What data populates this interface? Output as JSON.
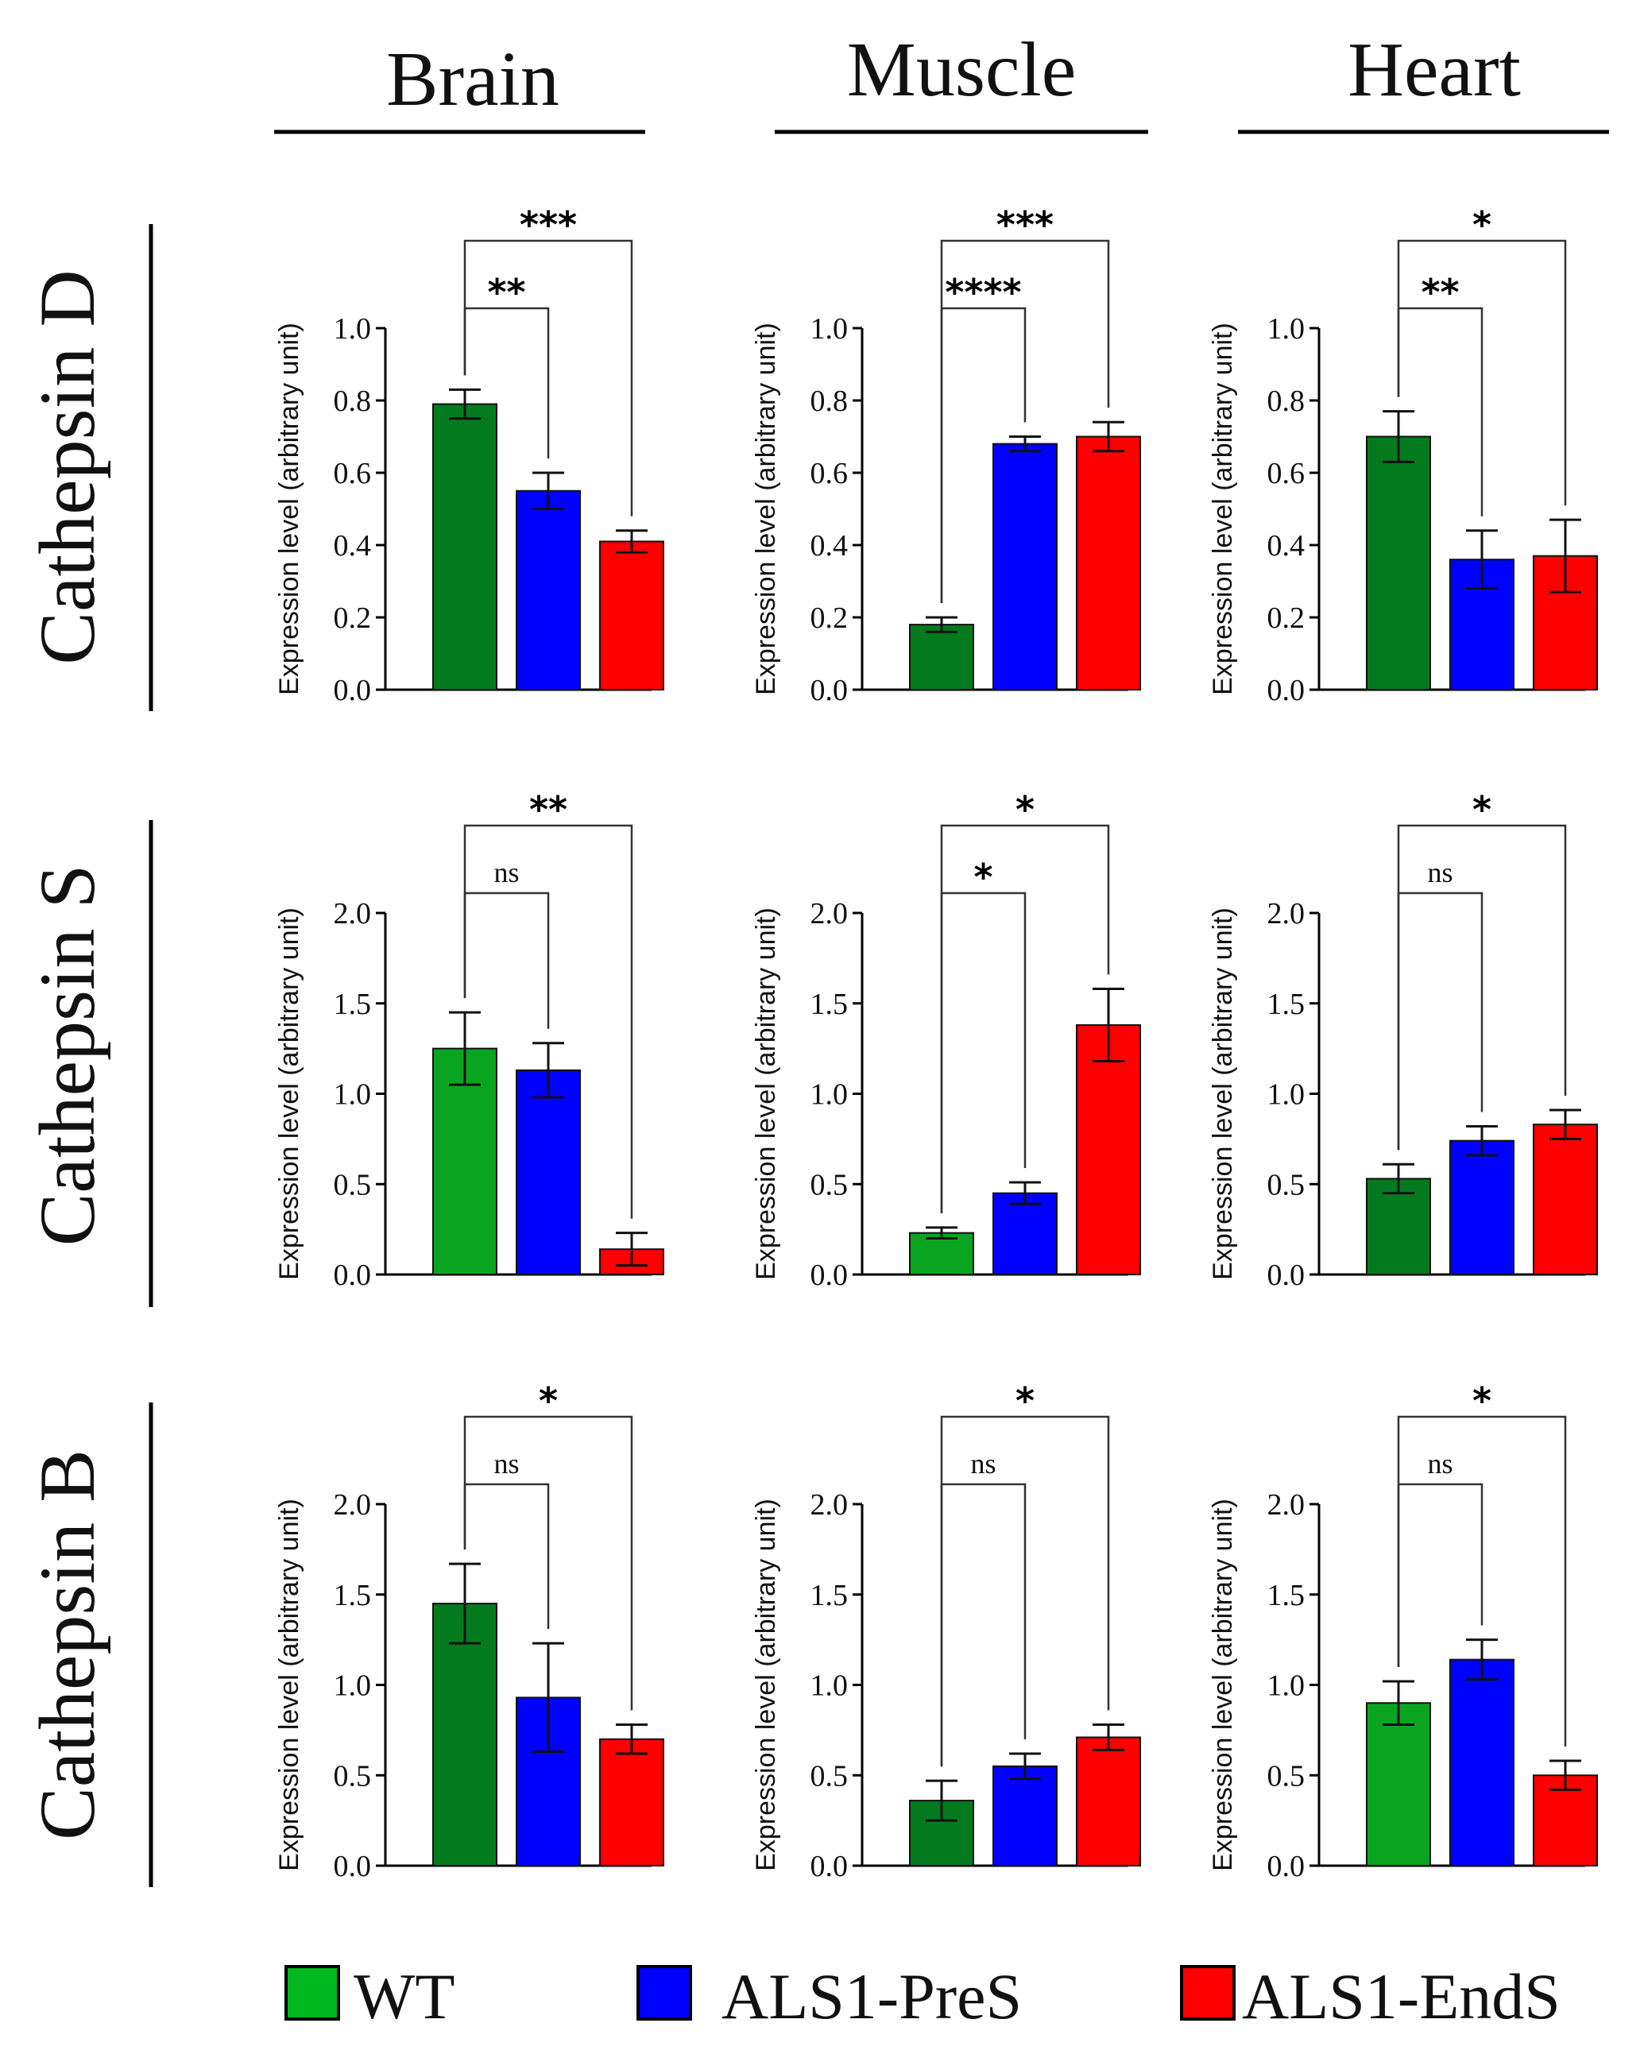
{
  "column_titles": [
    "Brain",
    "Muscle",
    "Heart"
  ],
  "row_titles": [
    "Cathepsin D",
    "Cathepsin S",
    "Cathepsin B"
  ],
  "legend": [
    {
      "label": "WT",
      "color": "#00b81f"
    },
    {
      "label": "ALS1-PreS",
      "color": "#0000ff"
    },
    {
      "label": "ALS1-EndS",
      "color": "#ff0000"
    }
  ],
  "colors": {
    "wt_dark": "#047a1f",
    "wt_light": "#0aa520",
    "pres": "#0000ff",
    "ends": "#ff0000"
  },
  "chart_data": [
    {
      "type": "bar",
      "row": "Cathepsin D",
      "column": "Brain",
      "ylabel": "Expression level (arbitrary unit)",
      "categories": [
        "WT",
        "ALS1-PreS",
        "ALS1-EndS"
      ],
      "values": [
        0.79,
        0.55,
        0.41
      ],
      "errors": [
        0.04,
        0.05,
        0.03
      ],
      "ylim": [
        0,
        1.0
      ],
      "ticks": [
        0.0,
        0.2,
        0.4,
        0.6,
        0.8,
        1.0
      ],
      "tick_labels": [
        "0.0",
        "0.2",
        "0.4",
        "0.6",
        "0.8",
        "1.0"
      ],
      "wt_shade": "dark",
      "significance": [
        {
          "from": 0,
          "to": 1,
          "label": "**"
        },
        {
          "from": 0,
          "to": 2,
          "label": "***"
        }
      ]
    },
    {
      "type": "bar",
      "row": "Cathepsin D",
      "column": "Muscle",
      "ylabel": "Expression level (arbitrary unit)",
      "categories": [
        "WT",
        "ALS1-PreS",
        "ALS1-EndS"
      ],
      "values": [
        0.18,
        0.68,
        0.7
      ],
      "errors": [
        0.02,
        0.02,
        0.04
      ],
      "ylim": [
        0,
        1.0
      ],
      "ticks": [
        0.0,
        0.2,
        0.4,
        0.6,
        0.8,
        1.0
      ],
      "tick_labels": [
        "0.0",
        "0.2",
        "0.4",
        "0.6",
        "0.8",
        "1.0"
      ],
      "wt_shade": "dark",
      "significance": [
        {
          "from": 0,
          "to": 1,
          "label": "****"
        },
        {
          "from": 0,
          "to": 2,
          "label": "***"
        }
      ]
    },
    {
      "type": "bar",
      "row": "Cathepsin D",
      "column": "Heart",
      "ylabel": "Expression level (arbitrary unit)",
      "categories": [
        "WT",
        "ALS1-PreS",
        "ALS1-EndS"
      ],
      "values": [
        0.7,
        0.36,
        0.37
      ],
      "errors": [
        0.07,
        0.08,
        0.1
      ],
      "ylim": [
        0,
        1.0
      ],
      "ticks": [
        0.0,
        0.2,
        0.4,
        0.6,
        0.8,
        1.0
      ],
      "tick_labels": [
        "0.0",
        "0.2",
        "0.4",
        "0.6",
        "0.8",
        "1.0"
      ],
      "wt_shade": "dark",
      "significance": [
        {
          "from": 0,
          "to": 1,
          "label": "**"
        },
        {
          "from": 0,
          "to": 2,
          "label": "*"
        }
      ]
    },
    {
      "type": "bar",
      "row": "Cathepsin S",
      "column": "Brain",
      "ylabel": "Expression level (arbitrary unit)",
      "categories": [
        "WT",
        "ALS1-PreS",
        "ALS1-EndS"
      ],
      "values": [
        1.25,
        1.13,
        0.14
      ],
      "errors": [
        0.2,
        0.15,
        0.09
      ],
      "ylim": [
        0,
        2.0
      ],
      "ticks": [
        0.0,
        0.5,
        1.0,
        1.5,
        2.0
      ],
      "tick_labels": [
        "0.0",
        "0.5",
        "1.0",
        "1.5",
        "2.0"
      ],
      "wt_shade": "light",
      "significance": [
        {
          "from": 0,
          "to": 1,
          "label": "ns"
        },
        {
          "from": 0,
          "to": 2,
          "label": "**"
        }
      ]
    },
    {
      "type": "bar",
      "row": "Cathepsin S",
      "column": "Muscle",
      "ylabel": "Expression level (arbitrary unit)",
      "categories": [
        "WT",
        "ALS1-PreS",
        "ALS1-EndS"
      ],
      "values": [
        0.23,
        0.45,
        1.38
      ],
      "errors": [
        0.03,
        0.06,
        0.2
      ],
      "ylim": [
        0,
        2.0
      ],
      "ticks": [
        0.0,
        0.5,
        1.0,
        1.5,
        2.0
      ],
      "tick_labels": [
        "0.0",
        "0.5",
        "1.0",
        "1.5",
        "2.0"
      ],
      "wt_shade": "light",
      "significance": [
        {
          "from": 0,
          "to": 1,
          "label": "*"
        },
        {
          "from": 0,
          "to": 2,
          "label": "*"
        }
      ]
    },
    {
      "type": "bar",
      "row": "Cathepsin S",
      "column": "Heart",
      "ylabel": "Expression level (arbitrary unit)",
      "categories": [
        "WT",
        "ALS1-PreS",
        "ALS1-EndS"
      ],
      "values": [
        0.53,
        0.74,
        0.83
      ],
      "errors": [
        0.08,
        0.08,
        0.08
      ],
      "ylim": [
        0,
        2.0
      ],
      "ticks": [
        0.0,
        0.5,
        1.0,
        1.5,
        2.0
      ],
      "tick_labels": [
        "0.0",
        "0.5",
        "1.0",
        "1.5",
        "2.0"
      ],
      "wt_shade": "dark",
      "significance": [
        {
          "from": 0,
          "to": 1,
          "label": "ns"
        },
        {
          "from": 0,
          "to": 2,
          "label": "*"
        }
      ]
    },
    {
      "type": "bar",
      "row": "Cathepsin B",
      "column": "Brain",
      "ylabel": "Expression level (arbitrary unit)",
      "categories": [
        "WT",
        "ALS1-PreS",
        "ALS1-EndS"
      ],
      "values": [
        1.45,
        0.93,
        0.7
      ],
      "errors": [
        0.22,
        0.3,
        0.08
      ],
      "ylim": [
        0,
        2.0
      ],
      "ticks": [
        0.0,
        0.5,
        1.0,
        1.5,
        2.0
      ],
      "tick_labels": [
        "0.0",
        "0.5",
        "1.0",
        "1.5",
        "2.0"
      ],
      "wt_shade": "dark",
      "significance": [
        {
          "from": 0,
          "to": 1,
          "label": "ns"
        },
        {
          "from": 0,
          "to": 2,
          "label": "*"
        }
      ]
    },
    {
      "type": "bar",
      "row": "Cathepsin B",
      "column": "Muscle",
      "ylabel": "Expression level (arbitrary unit)",
      "categories": [
        "WT",
        "ALS1-PreS",
        "ALS1-EndS"
      ],
      "values": [
        0.36,
        0.55,
        0.71
      ],
      "errors": [
        0.11,
        0.07,
        0.07
      ],
      "ylim": [
        0,
        2.0
      ],
      "ticks": [
        0.0,
        0.5,
        1.0,
        1.5,
        2.0
      ],
      "tick_labels": [
        "0.0",
        "0.5",
        "1.0",
        "1.5",
        "2.0"
      ],
      "wt_shade": "dark",
      "significance": [
        {
          "from": 0,
          "to": 1,
          "label": "ns"
        },
        {
          "from": 0,
          "to": 2,
          "label": "*"
        }
      ]
    },
    {
      "type": "bar",
      "row": "Cathepsin B",
      "column": "Heart",
      "ylabel": "Expression level (arbitrary unit)",
      "categories": [
        "WT",
        "ALS1-PreS",
        "ALS1-EndS"
      ],
      "values": [
        0.9,
        1.14,
        0.5
      ],
      "errors": [
        0.12,
        0.11,
        0.08
      ],
      "ylim": [
        0,
        2.0
      ],
      "ticks": [
        0.0,
        0.5,
        1.0,
        1.5,
        2.0
      ],
      "tick_labels": [
        "0.0",
        "0.5",
        "1.0",
        "1.5",
        "2.0"
      ],
      "wt_shade": "light",
      "significance": [
        {
          "from": 0,
          "to": 1,
          "label": "ns"
        },
        {
          "from": 0,
          "to": 2,
          "label": "*"
        }
      ]
    }
  ]
}
